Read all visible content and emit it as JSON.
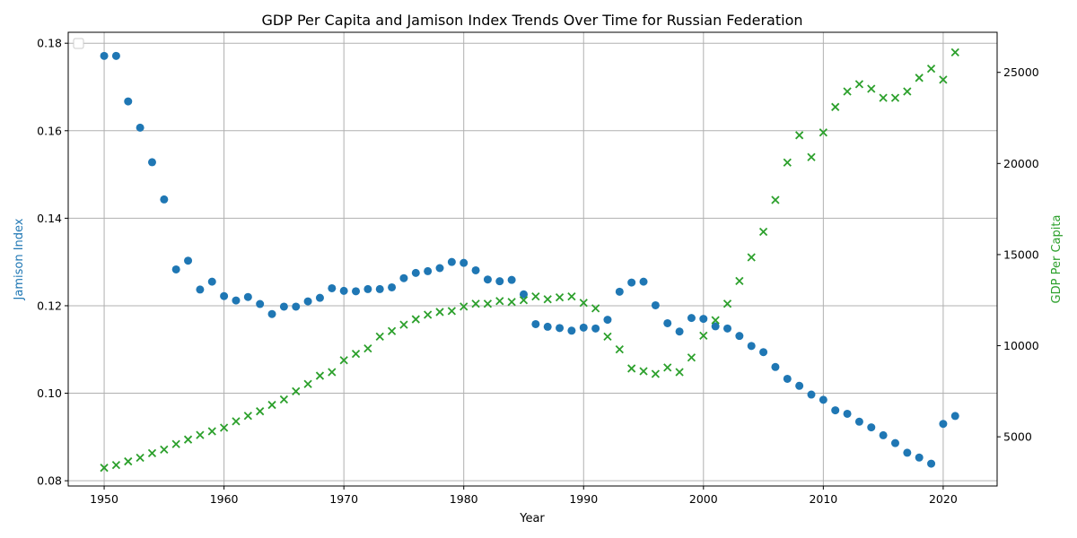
{
  "chart_data": {
    "type": "scatter",
    "title": "GDP Per Capita and Jamison Index Trends Over Time for Russian Federation",
    "xlabel": "Year",
    "ylabel_left": "Jamison Index",
    "ylabel_right": "GDP Per Capita",
    "xlim": [
      1947,
      2024.5
    ],
    "ylim_left": [
      0.0788,
      0.1825
    ],
    "ylim_right": [
      2300,
      27200
    ],
    "x_ticks": [
      1950,
      1960,
      1970,
      1980,
      1990,
      2000,
      2010,
      2020
    ],
    "y_ticks_left": [
      0.08,
      0.1,
      0.12,
      0.14,
      0.16,
      0.18
    ],
    "y_ticks_right": [
      5000,
      10000,
      15000,
      20000,
      25000
    ],
    "grid": true,
    "legend": "top-left",
    "colors": {
      "jamison": "#1f77b4",
      "gdp": "#2ca02c",
      "grid": "#b0b0b0"
    },
    "x": [
      1950,
      1951,
      1952,
      1953,
      1954,
      1955,
      1956,
      1957,
      1958,
      1959,
      1960,
      1961,
      1962,
      1963,
      1964,
      1965,
      1966,
      1967,
      1968,
      1969,
      1970,
      1971,
      1972,
      1973,
      1974,
      1975,
      1976,
      1977,
      1978,
      1979,
      1980,
      1981,
      1982,
      1983,
      1984,
      1985,
      1986,
      1987,
      1988,
      1989,
      1990,
      1991,
      1992,
      1993,
      1994,
      1995,
      1996,
      1997,
      1998,
      1999,
      2000,
      2001,
      2002,
      2003,
      2004,
      2005,
      2006,
      2007,
      2008,
      2009,
      2010,
      2011,
      2012,
      2013,
      2014,
      2015,
      2016,
      2017,
      2018,
      2019,
      2020,
      2021
    ],
    "series": [
      {
        "key": "jamison",
        "axis": "left",
        "marker": "circle",
        "values": [
          0.1771,
          0.1771,
          0.1667,
          0.1607,
          0.1528,
          0.1443,
          0.1283,
          0.1303,
          0.1237,
          0.1255,
          0.1222,
          0.1212,
          0.122,
          0.1204,
          0.1181,
          0.1198,
          0.1198,
          0.121,
          0.1218,
          0.124,
          0.1234,
          0.1233,
          0.1238,
          0.1238,
          0.1242,
          0.1263,
          0.1275,
          0.1279,
          0.1286,
          0.13,
          0.1298,
          0.1281,
          0.126,
          0.1256,
          0.1259,
          0.1226,
          0.1158,
          0.1152,
          0.1149,
          0.1143,
          0.115,
          0.1148,
          0.1168,
          0.1232,
          0.1253,
          0.1255,
          0.1201,
          0.116,
          0.1141,
          0.1172,
          0.117,
          0.1153,
          0.1148,
          0.1131,
          0.1108,
          0.1094,
          0.106,
          0.1033,
          0.1017,
          0.0997,
          0.0985,
          0.0961,
          0.0953,
          0.0935,
          0.0922,
          0.0904,
          0.0886,
          0.0864,
          0.0853,
          0.0839,
          0.093,
          0.0948
        ]
      },
      {
        "key": "gdp",
        "axis": "right",
        "marker": "x",
        "values": [
          3300,
          3450,
          3650,
          3850,
          4100,
          4300,
          4600,
          4850,
          5100,
          5300,
          5500,
          5850,
          6150,
          6400,
          6750,
          7050,
          7500,
          7900,
          8350,
          8550,
          9200,
          9550,
          9850,
          10500,
          10800,
          11150,
          11450,
          11700,
          11850,
          11900,
          12150,
          12300,
          12300,
          12450,
          12400,
          12500,
          12700,
          12550,
          12650,
          12700,
          12350,
          12050,
          10500,
          9800,
          8750,
          8600,
          8450,
          8800,
          8550,
          9350,
          10550,
          11400,
          12300,
          13550,
          14850,
          16250,
          18000,
          20050,
          21550,
          20350,
          21700,
          23100,
          23950,
          24350,
          24100,
          23600,
          23600,
          23950,
          24700,
          25200,
          24600,
          26100
        ]
      }
    ]
  }
}
